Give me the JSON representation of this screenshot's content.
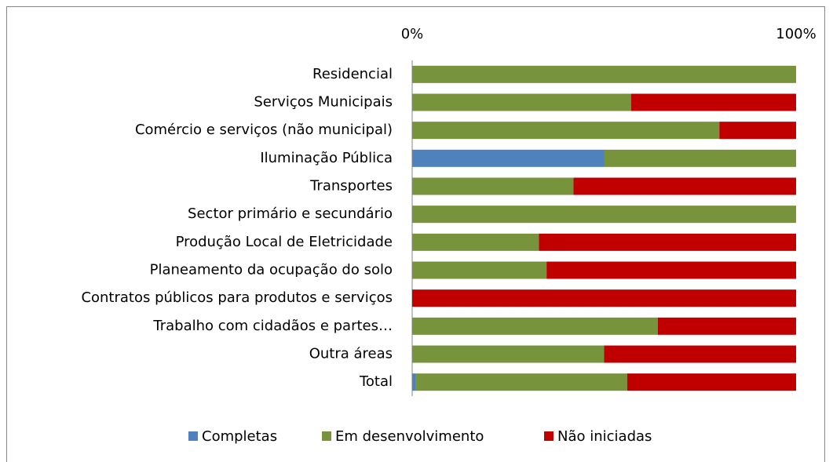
{
  "chart_data": {
    "type": "stacked_bar_horizontal",
    "categories": [
      "Residencial",
      "Serviços Municipais",
      "Comércio e serviços (não municipal)",
      "Iluminação Pública",
      "Transportes",
      "Sector primário e secundário",
      "Produção Local de Eletricidade",
      "Planeamento da ocupação do solo",
      "Contratos públicos para produtos e serviços",
      "Trabalho com cidadãos e partes…",
      "Outra áreas",
      "Total"
    ],
    "series": [
      {
        "name": "Completas",
        "color": "#4f81bd",
        "values": [
          0,
          0,
          0,
          50,
          0,
          0,
          0,
          0,
          0,
          0,
          0,
          1
        ]
      },
      {
        "name": "Em desenvolvimento",
        "color": "#77933c",
        "values": [
          100,
          57,
          80,
          50,
          42,
          100,
          33,
          35,
          0,
          64,
          50,
          55
        ]
      },
      {
        "name": "Não iniciadas",
        "color": "#c00000",
        "values": [
          0,
          43,
          20,
          0,
          58,
          0,
          67,
          65,
          100,
          36,
          50,
          44
        ]
      }
    ],
    "xlim": [
      0,
      100
    ],
    "xticks": [
      {
        "value": 0,
        "label": "0%"
      },
      {
        "value": 100,
        "label": "100%"
      }
    ],
    "legend": "bottom"
  }
}
